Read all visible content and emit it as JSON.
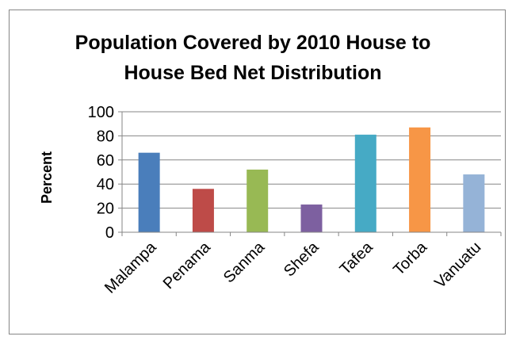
{
  "chart_data": {
    "type": "bar",
    "title": "Population Covered by 2010 House to House Bed Net Distribution",
    "title_lines": [
      "Population Covered by 2010 House to",
      "House Bed Net Distribution"
    ],
    "xlabel": "",
    "ylabel": "Percent",
    "categories": [
      "Malampa",
      "Penama",
      "Sanma",
      "Shefa",
      "Tafea",
      "Torba",
      "Vanuatu"
    ],
    "values": [
      66,
      36,
      52,
      23,
      81,
      87,
      48
    ],
    "colors": [
      "#4a7ebb",
      "#be4b48",
      "#98b954",
      "#7d60a0",
      "#46aac5",
      "#f79646",
      "#95b3d7"
    ],
    "ylim": [
      0,
      100
    ],
    "yticks": [
      0,
      20,
      40,
      60,
      80,
      100
    ],
    "grid": true,
    "legend": "none"
  }
}
